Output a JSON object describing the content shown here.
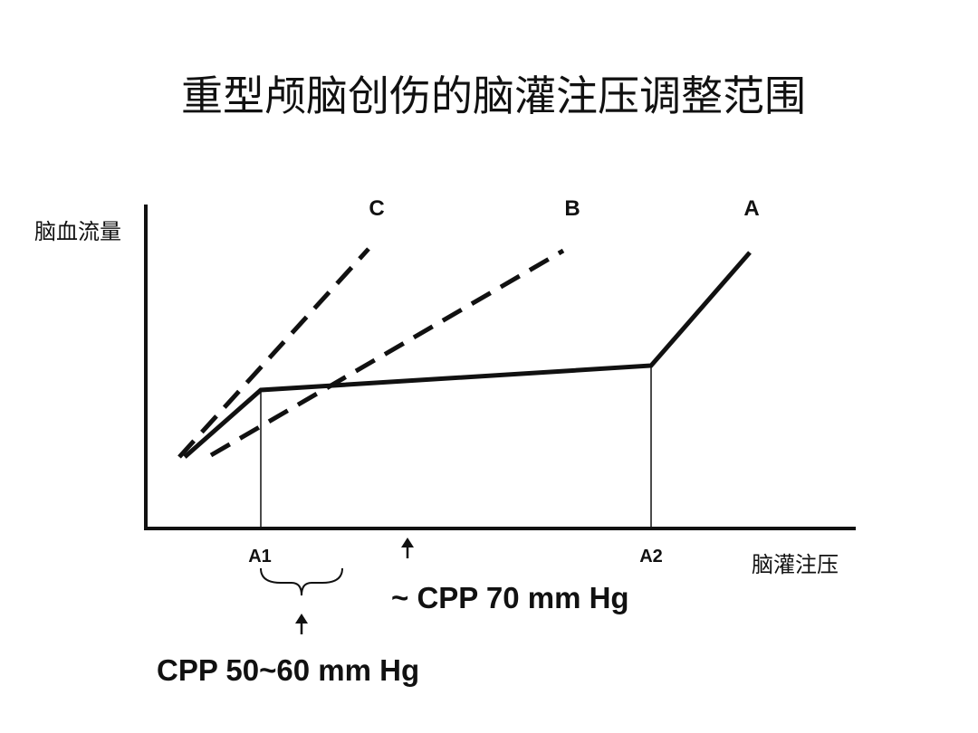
{
  "slide": {
    "title": "重型颅脑创伤的脑灌注压调整范围"
  },
  "axes": {
    "y_label": "脑血流量",
    "x_label": "脑灌注压",
    "x_ticks": [
      "A1",
      "A2"
    ]
  },
  "curves": [
    {
      "label": "A",
      "style": "solid"
    },
    {
      "label": "B",
      "style": "dashed"
    },
    {
      "label": "C",
      "style": "dashed"
    }
  ],
  "annotations": {
    "optimal_cpp": "~ CPP 70 mm Hg",
    "threshold_cpp": "CPP 50~60 mm Hg"
  },
  "colors": {
    "ink": "#111111",
    "background": "#ffffff"
  },
  "icons": {
    "arrow": "up-arrow-icon",
    "brace": "brace-icon"
  }
}
